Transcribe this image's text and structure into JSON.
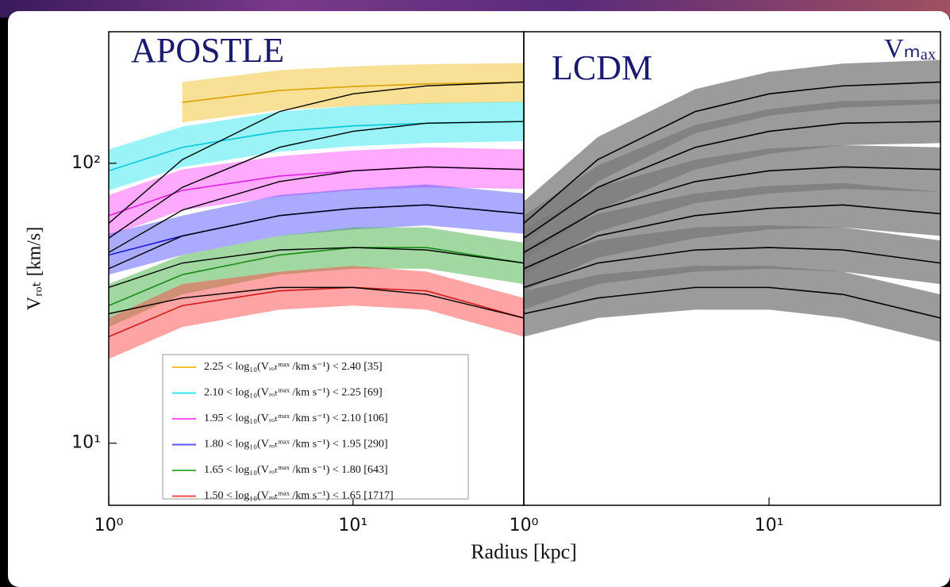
{
  "chart_data": [
    {
      "type": "line",
      "title": "APOSTLE",
      "ylabel": "Vᵣₒₜ [km/s]",
      "xlabel": "Radius [kpc]",
      "log_x": true,
      "log_y": true,
      "xlim": [
        1,
        50
      ],
      "ylim": [
        6,
        295
      ],
      "xticks": [
        {
          "value": 1,
          "label": "10⁰"
        },
        {
          "value": 10,
          "label": "10¹"
        }
      ],
      "yticks": [
        {
          "value": 10,
          "label": "10¹"
        },
        {
          "value": 100,
          "label": "10²"
        }
      ],
      "x": [
        1,
        2,
        5,
        10,
        20,
        50
      ],
      "series": [
        {
          "name": "2.25 < log₁₀(Vᵣₒₜᵐᵃˣ /km s⁻¹) < 2.40 [35]",
          "color": "#f2c230",
          "line_color": "#d9a400",
          "values": [
            null,
            165,
            182,
            188,
            192,
            195
          ],
          "upper": [
            null,
            195,
            215,
            222,
            226,
            228
          ],
          "lower": [
            null,
            140,
            155,
            160,
            163,
            165
          ]
        },
        {
          "name": "2.10 < log₁₀(Vᵣₒₜᵐᵃˣ /km s⁻¹) < 2.25 [69]",
          "color": "#33e8f0",
          "line_color": "#00c8d8",
          "values": [
            94,
            114,
            130,
            136,
            139,
            141
          ],
          "upper": [
            112,
            135,
            153,
            160,
            164,
            166
          ],
          "lower": [
            80,
            97,
            110,
            115,
            118,
            120
          ]
        },
        {
          "name": "1.95 < log₁₀(Vᵣₒₜᵐᵃˣ /km s⁻¹) < 2.10 [106]",
          "color": "#ff55ff",
          "line_color": "#e020e0",
          "values": [
            65,
            80,
            90,
            94,
            97,
            95
          ],
          "upper": [
            77,
            95,
            106,
            111,
            114,
            112
          ],
          "lower": [
            55,
            68,
            76,
            80,
            82,
            81
          ]
        },
        {
          "name": "1.80 < log₁₀(Vᵣₒₜᵐᵃˣ /km s⁻¹) < 1.95 [290]",
          "color": "#5555ff",
          "line_color": "#1a1ad0",
          "values": [
            47,
            55,
            65,
            69,
            71,
            66
          ],
          "upper": [
            56,
            65,
            77,
            81,
            84,
            78
          ],
          "lower": [
            40,
            47,
            55,
            58,
            60,
            56
          ]
        },
        {
          "name": "1.65 < log₁₀(Vᵣₒₜᵐᵃˣ /km s⁻¹) < 1.80 [643]",
          "color": "#44b044",
          "line_color": "#1a8a1a",
          "values": [
            31,
            40,
            47,
            50,
            50,
            44
          ],
          "upper": [
            37,
            47,
            55,
            59,
            59,
            52
          ],
          "lower": [
            26,
            34,
            40,
            42,
            42,
            37
          ]
        },
        {
          "name": "1.50 < log₁₀(Vᵣₒₜᵐᵃˣ /km s⁻¹) < 1.65 [1717]",
          "color": "#ff4a4a",
          "line_color": "#d01a1a",
          "values": [
            24,
            31,
            35,
            36,
            35,
            28
          ],
          "upper": [
            28,
            37,
            41,
            43,
            41,
            33
          ],
          "lower": [
            20,
            26,
            30,
            31,
            30,
            24
          ]
        }
      ]
    },
    {
      "type": "line",
      "title": "LCDM",
      "annotation": "Vₘₐₓ",
      "log_x": true,
      "log_y": true,
      "xlim": [
        1,
        50
      ],
      "ylim": [
        6,
        295
      ],
      "xticks": [
        {
          "value": 1,
          "label": "10⁰"
        },
        {
          "value": 10,
          "label": "10¹"
        }
      ],
      "x": [
        1,
        2,
        5,
        10,
        20,
        50
      ],
      "series": [
        {
          "color": "#7a7a7a",
          "line_color": "#000000",
          "values": [
            61,
            103,
            153,
            177,
            189,
            195
          ],
          "upper": [
            73,
            124,
            184,
            212,
            227,
            234
          ],
          "lower": [
            51,
            86,
            128,
            148,
            158,
            163
          ]
        },
        {
          "color": "#7a7a7a",
          "line_color": "#000000",
          "values": [
            54,
            82,
            114,
            130,
            139,
            141
          ],
          "upper": [
            65,
            98,
            137,
            156,
            167,
            169
          ],
          "lower": [
            45,
            68,
            95,
            108,
            116,
            118
          ]
        },
        {
          "color": "#7a7a7a",
          "line_color": "#000000",
          "values": [
            48,
            68,
            86,
            94,
            97,
            95
          ],
          "upper": [
            58,
            82,
            103,
            113,
            116,
            114
          ],
          "lower": [
            40,
            57,
            72,
            78,
            81,
            79
          ]
        },
        {
          "color": "#7a7a7a",
          "line_color": "#000000",
          "values": [
            42,
            55,
            65,
            69,
            71,
            66
          ],
          "upper": [
            50,
            66,
            78,
            83,
            85,
            79
          ],
          "lower": [
            35,
            46,
            54,
            58,
            59,
            55
          ]
        },
        {
          "color": "#7a7a7a",
          "line_color": "#000000",
          "values": [
            36,
            44,
            49,
            50,
            49,
            44
          ],
          "upper": [
            43,
            53,
            59,
            60,
            59,
            53
          ],
          "lower": [
            30,
            37,
            41,
            42,
            41,
            37
          ]
        },
        {
          "color": "#7a7a7a",
          "line_color": "#000000",
          "values": [
            29,
            33,
            36,
            36,
            34,
            28
          ],
          "upper": [
            35,
            40,
            43,
            43,
            41,
            34
          ],
          "lower": [
            24,
            28,
            30,
            30,
            28,
            23
          ]
        }
      ]
    }
  ]
}
